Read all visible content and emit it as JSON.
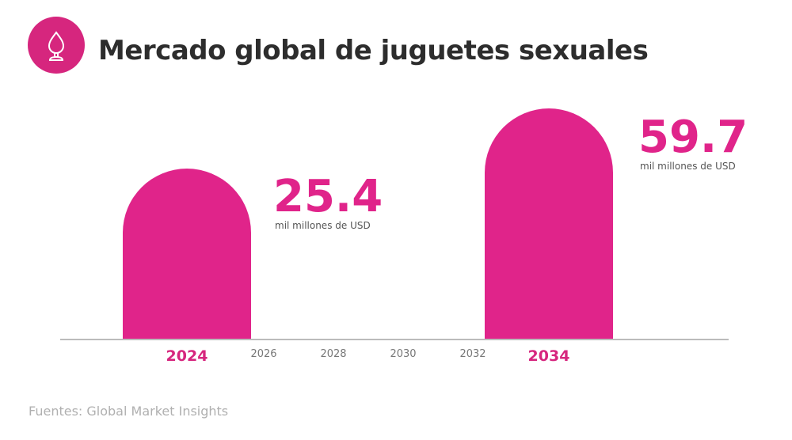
{
  "title": "Mercado global de juguetes sexuales",
  "icon": "plug-icon",
  "source": "Fuentes: Global Market Insights",
  "colors": {
    "bar": "#e0248a",
    "icon_bg": "#d6267e",
    "axis": "#bbbbbb"
  },
  "chart_data": {
    "type": "bar",
    "categories": [
      "2024",
      "2026",
      "2028",
      "2030",
      "2032",
      "2034"
    ],
    "highlighted": [
      "2024",
      "2034"
    ],
    "series": [
      {
        "values": [
          25.4,
          null,
          null,
          null,
          null,
          59.7
        ]
      }
    ],
    "data_labels": [
      {
        "category": "2024",
        "value": "25.4",
        "unit": "mil millones de USD"
      },
      {
        "category": "2034",
        "value": "59.7",
        "unit": "mil millones de USD"
      }
    ],
    "grid": false
  }
}
